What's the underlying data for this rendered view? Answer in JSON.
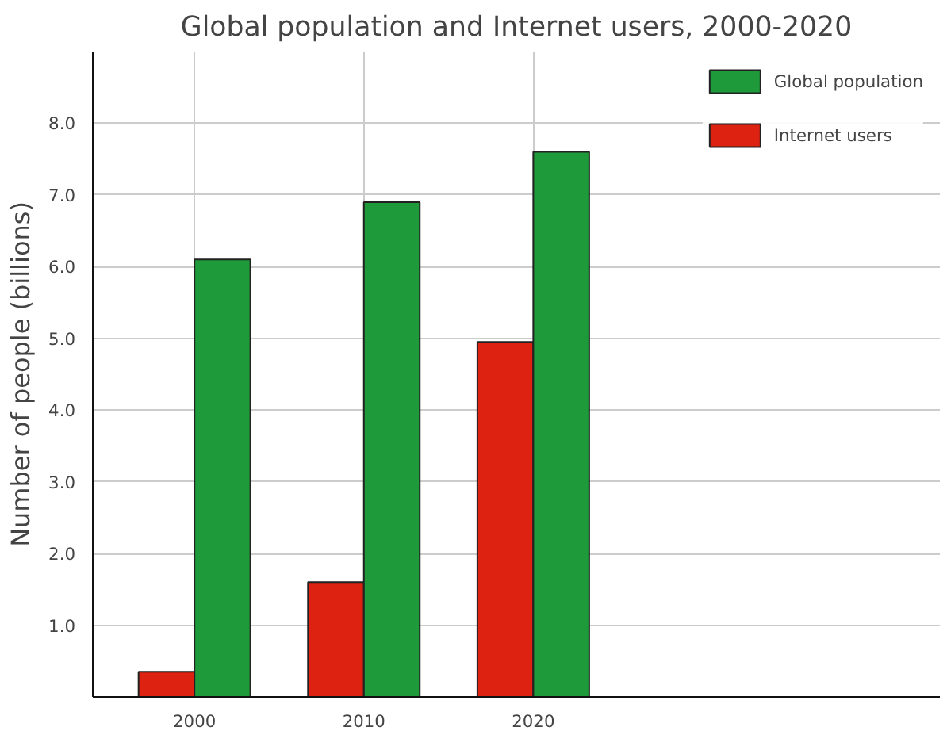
{
  "chart_data": {
    "type": "bar",
    "title": "Global population and Internet users, 2000-2020",
    "ylabel": "Number of people (billions)",
    "categories": [
      "2000",
      "2010",
      "2020"
    ],
    "series": [
      {
        "name": "Internet users",
        "color": "#dd2211",
        "values": [
          0.35,
          1.6,
          4.95
        ]
      },
      {
        "name": "Global population",
        "color": "#1e9a3a",
        "values": [
          6.1,
          6.9,
          7.6
        ]
      }
    ],
    "ylim": [
      0,
      9
    ],
    "yticks": [
      {
        "value": 1,
        "label": "1.0"
      },
      {
        "value": 2,
        "label": "2.0"
      },
      {
        "value": 3,
        "label": "3.0"
      },
      {
        "value": 4,
        "label": "4.0"
      },
      {
        "value": 5,
        "label": "5.0"
      },
      {
        "value": 6,
        "label": "6.0"
      },
      {
        "value": 7,
        "label": "7.0"
      },
      {
        "value": 8,
        "label": "8.0"
      }
    ],
    "grid": true,
    "legend": "top right"
  }
}
